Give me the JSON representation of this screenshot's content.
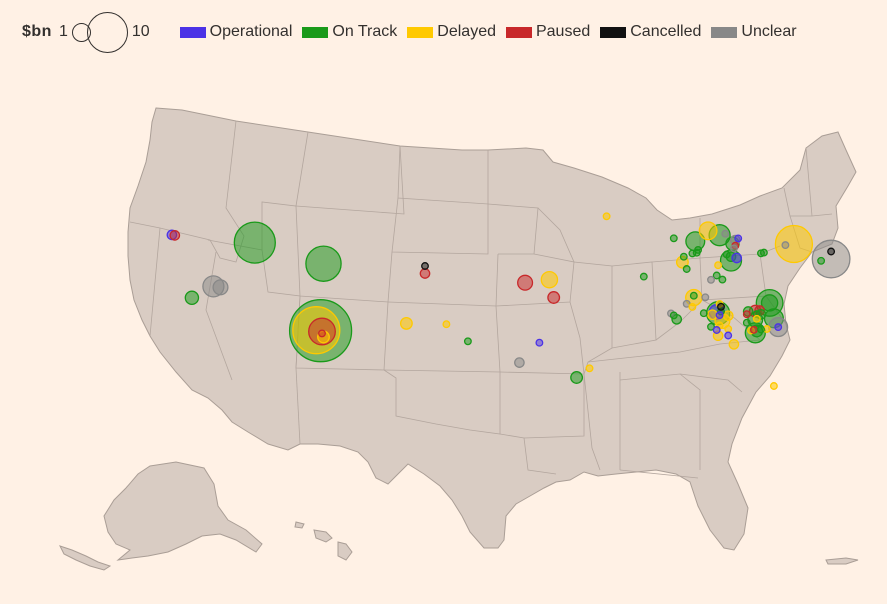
{
  "legend": {
    "size_unit": "$bn",
    "size_small_label": "1",
    "size_large_label": "10",
    "statuses": [
      {
        "key": "operational",
        "label": "Operational",
        "color": "#4b32e6"
      },
      {
        "key": "on_track",
        "label": "On Track",
        "color": "#1a9a1a"
      },
      {
        "key": "delayed",
        "label": "Delayed",
        "color": "#ffc900"
      },
      {
        "key": "paused",
        "label": "Paused",
        "color": "#c8282a"
      },
      {
        "key": "cancelled",
        "label": "Cancelled",
        "color": "#111111"
      },
      {
        "key": "unclear",
        "label": "Unclear",
        "color": "#888888"
      }
    ]
  },
  "chart_data": {
    "type": "bubble-map",
    "size_unit": "$bn",
    "projects": [
      {
        "lon": -122.7,
        "lat": 45.6,
        "status": "operational",
        "bn": 0.2
      },
      {
        "lon": -122.5,
        "lat": 45.5,
        "status": "paused",
        "bn": 0.2
      },
      {
        "lon": -116.9,
        "lat": 43.6,
        "status": "on_track",
        "bn": 3.8
      },
      {
        "lon": -121.3,
        "lat": 38.6,
        "status": "on_track",
        "bn": 0.4
      },
      {
        "lon": -119.8,
        "lat": 39.5,
        "status": "unclear",
        "bn": 1.0
      },
      {
        "lon": -119.3,
        "lat": 39.3,
        "status": "unclear",
        "bn": 0.5
      },
      {
        "lon": -112.1,
        "lat": 40.6,
        "status": "on_track",
        "bn": 2.8
      },
      {
        "lon": -112.3,
        "lat": 33.5,
        "status": "on_track",
        "bn": 8.7
      },
      {
        "lon": -112.6,
        "lat": 33.6,
        "status": "delayed",
        "bn": 5.0
      },
      {
        "lon": -112.2,
        "lat": 33.4,
        "status": "paused",
        "bn": 1.6
      },
      {
        "lon": -112.2,
        "lat": 33.2,
        "status": "paused",
        "bn": 0.1
      },
      {
        "lon": -112.1,
        "lat": 32.8,
        "status": "delayed",
        "bn": 0.3
      },
      {
        "lon": -105.0,
        "lat": 39.6,
        "status": "cancelled",
        "bn": 0.1
      },
      {
        "lon": -105.0,
        "lat": 38.8,
        "status": "paused",
        "bn": 0.2
      },
      {
        "lon": -106.3,
        "lat": 33.6,
        "status": "delayed",
        "bn": 0.3
      },
      {
        "lon": -103.5,
        "lat": 33.3,
        "status": "delayed",
        "bn": 0.1
      },
      {
        "lon": -102.0,
        "lat": 31.4,
        "status": "on_track",
        "bn": 0.1
      },
      {
        "lon": -98.0,
        "lat": 37.5,
        "status": "paused",
        "bn": 0.5
      },
      {
        "lon": -96.3,
        "lat": 37.8,
        "status": "delayed",
        "bn": 0.6
      },
      {
        "lon": -96.0,
        "lat": 35.9,
        "status": "paused",
        "bn": 0.3
      },
      {
        "lon": -97.0,
        "lat": 31.1,
        "status": "operational",
        "bn": 0.1
      },
      {
        "lon": -98.4,
        "lat": 29.0,
        "status": "unclear",
        "bn": 0.2
      },
      {
        "lon": -94.4,
        "lat": 27.4,
        "status": "on_track",
        "bn": 0.3
      },
      {
        "lon": -93.5,
        "lat": 28.4,
        "status": "delayed",
        "bn": 0.1
      },
      {
        "lon": -92.3,
        "lat": 44.6,
        "status": "delayed",
        "bn": 0.1
      },
      {
        "lon": -87.6,
        "lat": 42.5,
        "status": "on_track",
        "bn": 0.1
      },
      {
        "lon": -85.2,
        "lat": 43.5,
        "status": "delayed",
        "bn": 0.7
      },
      {
        "lon": -84.4,
        "lat": 43.1,
        "status": "on_track",
        "bn": 1.0
      },
      {
        "lon": -86.1,
        "lat": 42.3,
        "status": "on_track",
        "bn": 0.8
      },
      {
        "lon": -84.0,
        "lat": 43.3,
        "status": "unclear",
        "bn": 0.1
      },
      {
        "lon": -83.3,
        "lat": 42.7,
        "status": "unclear",
        "bn": 0.2
      },
      {
        "lon": -83.1,
        "lat": 42.9,
        "status": "operational",
        "bn": 0.1
      },
      {
        "lon": -83.5,
        "lat": 42.3,
        "status": "on_track",
        "bn": 0.4
      },
      {
        "lon": -83.3,
        "lat": 42.1,
        "status": "paused",
        "bn": 0.1
      },
      {
        "lon": -83.4,
        "lat": 41.8,
        "status": "unclear",
        "bn": 0.1
      },
      {
        "lon": -85.9,
        "lat": 41.4,
        "status": "on_track",
        "bn": 0.1
      },
      {
        "lon": -86.3,
        "lat": 41.0,
        "status": "on_track",
        "bn": 0.1
      },
      {
        "lon": -86.0,
        "lat": 41.1,
        "status": "on_track",
        "bn": 0.1
      },
      {
        "lon": -86.9,
        "lat": 40.6,
        "status": "on_track",
        "bn": 0.1
      },
      {
        "lon": -83.9,
        "lat": 41.1,
        "status": "on_track",
        "bn": 0.1
      },
      {
        "lon": -83.6,
        "lat": 40.5,
        "status": "on_track",
        "bn": 1.0
      },
      {
        "lon": -83.6,
        "lat": 40.9,
        "status": "on_track",
        "bn": 0.2
      },
      {
        "lon": -83.2,
        "lat": 40.8,
        "status": "operational",
        "bn": 0.2
      },
      {
        "lon": -84.5,
        "lat": 39.9,
        "status": "delayed",
        "bn": 0.1
      },
      {
        "lon": -87.0,
        "lat": 40.0,
        "status": "delayed",
        "bn": 0.3
      },
      {
        "lon": -86.7,
        "lat": 39.3,
        "status": "on_track",
        "bn": 0.1
      },
      {
        "lon": -84.6,
        "lat": 38.8,
        "status": "on_track",
        "bn": 0.1
      },
      {
        "lon": -84.2,
        "lat": 38.4,
        "status": "on_track",
        "bn": 0.1
      },
      {
        "lon": -85.0,
        "lat": 38.3,
        "status": "unclear",
        "bn": 0.1
      },
      {
        "lon": -89.7,
        "lat": 38.3,
        "status": "on_track",
        "bn": 0.1
      },
      {
        "lon": -81.3,
        "lat": 41.6,
        "status": "on_track",
        "bn": 0.1
      },
      {
        "lon": -81.5,
        "lat": 41.5,
        "status": "on_track",
        "bn": 0.1
      },
      {
        "lon": -79.2,
        "lat": 42.8,
        "status": "delayed",
        "bn": 3.1
      },
      {
        "lon": -79.8,
        "lat": 42.6,
        "status": "unclear",
        "bn": 0.1
      },
      {
        "lon": -77.3,
        "lat": 41.3,
        "status": "on_track",
        "bn": 0.1
      },
      {
        "lon": -76.6,
        "lat": 41.6,
        "status": "unclear",
        "bn": 3.2
      },
      {
        "lon": -76.6,
        "lat": 42.4,
        "status": "cancelled",
        "bn": 0.1
      },
      {
        "lon": -86.2,
        "lat": 36.3,
        "status": "delayed",
        "bn": 0.6
      },
      {
        "lon": -86.2,
        "lat": 36.5,
        "status": "on_track",
        "bn": 0.1
      },
      {
        "lon": -85.4,
        "lat": 36.4,
        "status": "unclear",
        "bn": 0.1
      },
      {
        "lon": -86.7,
        "lat": 35.6,
        "status": "unclear",
        "bn": 0.1
      },
      {
        "lon": -86.3,
        "lat": 35.3,
        "status": "delayed",
        "bn": 0.1
      },
      {
        "lon": -85.5,
        "lat": 34.7,
        "status": "on_track",
        "bn": 0.1
      },
      {
        "lon": -84.9,
        "lat": 34.6,
        "status": "delayed",
        "bn": 0.2
      },
      {
        "lon": -84.3,
        "lat": 35.0,
        "status": "on_track",
        "bn": 0.1
      },
      {
        "lon": -84.4,
        "lat": 35.8,
        "status": "delayed",
        "bn": 0.1
      },
      {
        "lon": -84.3,
        "lat": 35.5,
        "status": "cancelled",
        "bn": 0.1
      },
      {
        "lon": -84.6,
        "lat": 34.9,
        "status": "operational",
        "bn": 0.5
      },
      {
        "lon": -84.5,
        "lat": 34.8,
        "status": "on_track",
        "bn": 1.2
      },
      {
        "lon": -84.4,
        "lat": 34.6,
        "status": "operational",
        "bn": 0.1
      },
      {
        "lon": -83.8,
        "lat": 34.6,
        "status": "delayed",
        "bn": 0.2
      },
      {
        "lon": -84.2,
        "lat": 34.0,
        "status": "delayed",
        "bn": 0.5
      },
      {
        "lon": -84.4,
        "lat": 33.5,
        "status": "delayed",
        "bn": 0.1
      },
      {
        "lon": -85.0,
        "lat": 33.3,
        "status": "on_track",
        "bn": 0.1
      },
      {
        "lon": -84.6,
        "lat": 33.0,
        "status": "operational",
        "bn": 0.1
      },
      {
        "lon": -84.5,
        "lat": 32.4,
        "status": "delayed",
        "bn": 0.2
      },
      {
        "lon": -87.8,
        "lat": 34.5,
        "status": "unclear",
        "bn": 0.1
      },
      {
        "lon": -87.6,
        "lat": 34.3,
        "status": "on_track",
        "bn": 0.1
      },
      {
        "lon": -87.4,
        "lat": 33.9,
        "status": "on_track",
        "bn": 0.2
      },
      {
        "lon": -80.9,
        "lat": 36.3,
        "status": "on_track",
        "bn": 1.6
      },
      {
        "lon": -80.9,
        "lat": 36.3,
        "status": "on_track",
        "bn": 0.6
      },
      {
        "lon": -82.4,
        "lat": 35.2,
        "status": "on_track",
        "bn": 0.2
      },
      {
        "lon": -81.9,
        "lat": 35.3,
        "status": "paused",
        "bn": 0.3
      },
      {
        "lon": -81.6,
        "lat": 35.4,
        "status": "paused",
        "bn": 0.2
      },
      {
        "lon": -81.8,
        "lat": 35.0,
        "status": "on_track",
        "bn": 0.1
      },
      {
        "lon": -81.5,
        "lat": 35.0,
        "status": "on_track",
        "bn": 0.2
      },
      {
        "lon": -82.5,
        "lat": 34.9,
        "status": "paused",
        "bn": 0.1
      },
      {
        "lon": -81.9,
        "lat": 34.4,
        "status": "on_track",
        "bn": 0.5
      },
      {
        "lon": -81.8,
        "lat": 34.5,
        "status": "delayed",
        "bn": 0.1
      },
      {
        "lon": -82.5,
        "lat": 34.0,
        "status": "on_track",
        "bn": 0.1
      },
      {
        "lon": -80.6,
        "lat": 34.7,
        "status": "on_track",
        "bn": 0.8
      },
      {
        "lon": -80.3,
        "lat": 33.8,
        "status": "unclear",
        "bn": 0.8
      },
      {
        "lon": -80.3,
        "lat": 33.8,
        "status": "operational",
        "bn": 0.1
      },
      {
        "lon": -81.1,
        "lat": 33.5,
        "status": "delayed",
        "bn": 0.1
      },
      {
        "lon": -81.9,
        "lat": 33.0,
        "status": "on_track",
        "bn": 0.9
      },
      {
        "lon": -81.8,
        "lat": 33.2,
        "status": "on_track",
        "bn": 0.3
      },
      {
        "lon": -82.2,
        "lat": 33.2,
        "status": "delayed",
        "bn": 0.1
      },
      {
        "lon": -82.0,
        "lat": 33.3,
        "status": "paused",
        "bn": 0.1
      },
      {
        "lon": -81.5,
        "lat": 33.4,
        "status": "on_track",
        "bn": 0.1
      },
      {
        "lon": -83.8,
        "lat": 33.2,
        "status": "delayed",
        "bn": 0.1
      },
      {
        "lon": -83.8,
        "lat": 32.5,
        "status": "operational",
        "bn": 0.1
      },
      {
        "lon": -83.4,
        "lat": 31.6,
        "status": "delayed",
        "bn": 0.2
      },
      {
        "lon": -80.6,
        "lat": 27.5,
        "status": "delayed",
        "bn": 0.1
      }
    ]
  }
}
